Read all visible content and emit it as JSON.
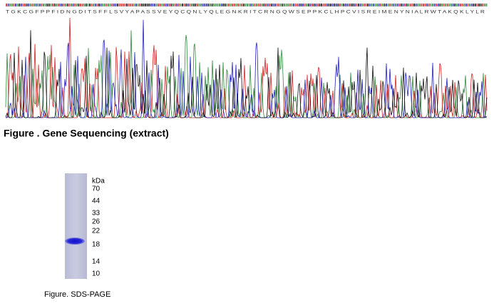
{
  "sequencing": {
    "amino_acids": "T G K C G F P P F I D N G D I T S F F L S V Y A P A S S V E Y Q C Q N L Y Q L E G N K R I T C R N G Q W S E P P K C L H P C V I S R E I M E N Y N I A L R W T A K Q K L Y L R",
    "caption": "Figure . Gene Sequencing (extract)"
  },
  "gel": {
    "unit": "kDa",
    "markers": [
      70,
      44,
      33,
      26,
      22,
      18,
      14,
      10
    ],
    "caption": "Figure. SDS-PAGE"
  }
}
